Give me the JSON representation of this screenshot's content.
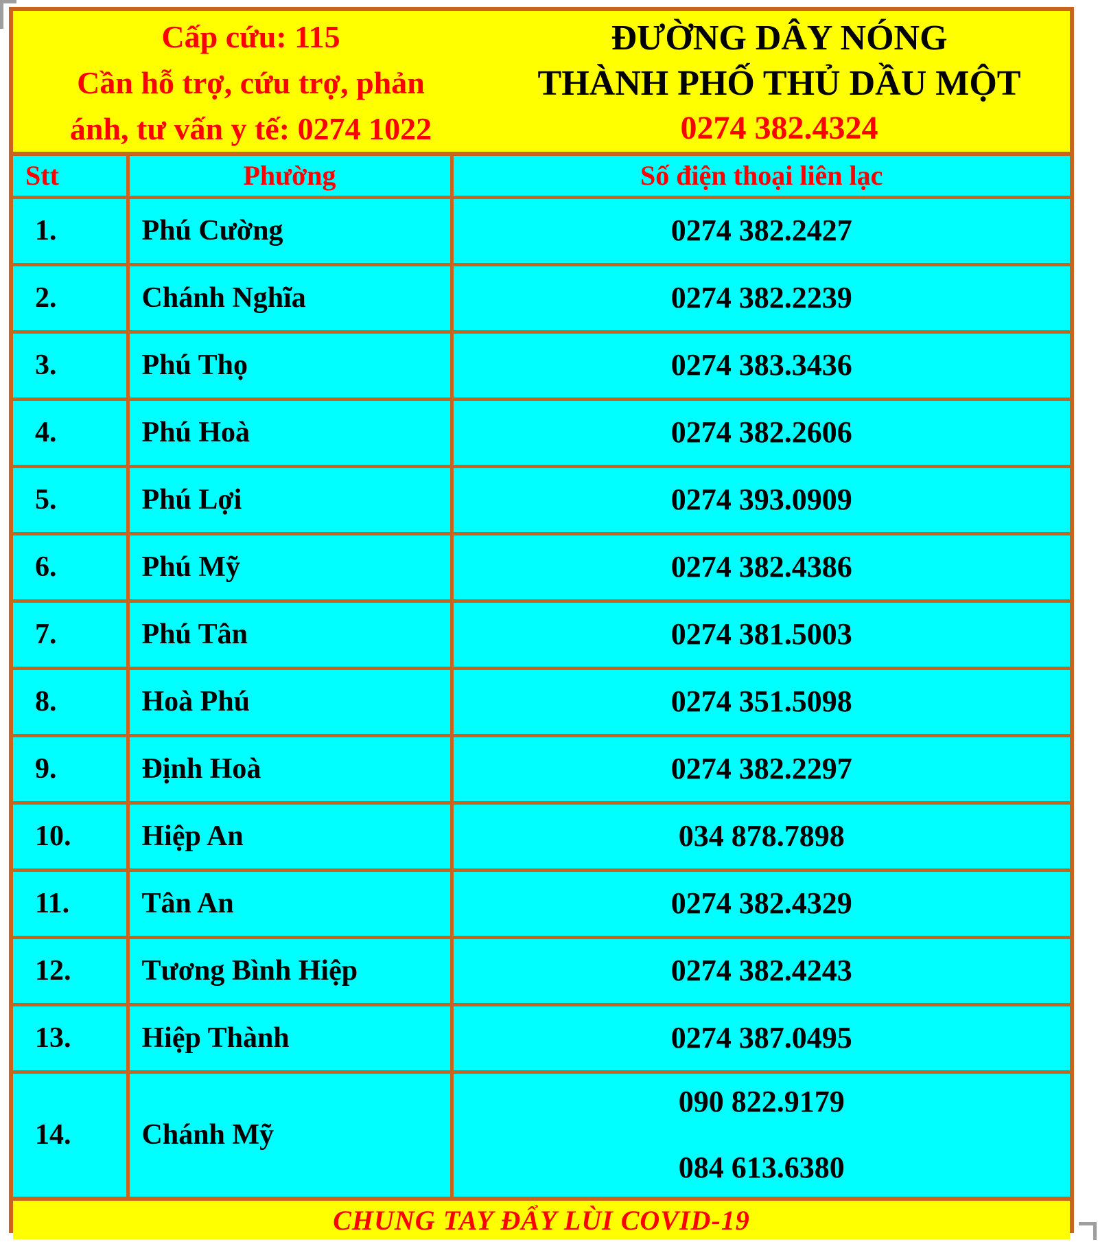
{
  "header": {
    "left": {
      "lines": [
        "Cấp cứu: 115",
        "Cần hỗ trợ, cứu trợ, phản",
        "ánh, tư vấn y tế: 0274 1022"
      ]
    },
    "right": {
      "lines": [
        "ĐƯỜNG DÂY NÓNG",
        "THÀNH PHỐ THỦ DẦU MỘT"
      ],
      "hotline": "0274 382.4324"
    }
  },
  "table": {
    "columns": [
      "Stt",
      "Phường",
      "Số điện thoại liên lạc"
    ],
    "rows": [
      {
        "stt": "1.",
        "ward": "Phú Cường",
        "phones": [
          "0274 382.2427"
        ]
      },
      {
        "stt": "2.",
        "ward": "Chánh Nghĩa",
        "phones": [
          "0274 382.2239"
        ]
      },
      {
        "stt": "3.",
        "ward": "Phú Thọ",
        "phones": [
          "0274 383.3436"
        ]
      },
      {
        "stt": "4.",
        "ward": "Phú Hoà",
        "phones": [
          "0274 382.2606"
        ]
      },
      {
        "stt": "5.",
        "ward": "Phú Lợi",
        "phones": [
          "0274 393.0909"
        ]
      },
      {
        "stt": "6.",
        "ward": "Phú Mỹ",
        "phones": [
          "0274 382.4386"
        ]
      },
      {
        "stt": "7.",
        "ward": "Phú Tân",
        "phones": [
          "0274 381.5003"
        ]
      },
      {
        "stt": "8.",
        "ward": "Hoà Phú",
        "phones": [
          "0274 351.5098"
        ]
      },
      {
        "stt": "9.",
        "ward": "Định Hoà",
        "phones": [
          "0274 382.2297"
        ]
      },
      {
        "stt": "10.",
        "ward": "Hiệp An",
        "phones": [
          "034 878.7898"
        ]
      },
      {
        "stt": "11.",
        "ward": "Tân An",
        "phones": [
          "0274 382.4329"
        ]
      },
      {
        "stt": "12.",
        "ward": "Tương Bình Hiệp",
        "phones": [
          "0274 382.4243"
        ]
      },
      {
        "stt": "13.",
        "ward": "Hiệp Thành",
        "phones": [
          "0274 387.0495"
        ]
      },
      {
        "stt": "14.",
        "ward": "Chánh Mỹ",
        "phones": [
          "090 822.9179",
          "084 613.6380"
        ]
      }
    ]
  },
  "footer": {
    "slogan": "CHUNG TAY ĐẨY LÙI COVID-19"
  },
  "colors": {
    "border_orange": "#c8641e",
    "band_yellow": "#ffff00",
    "cell_cyan": "#00ffff",
    "red_text": "#ff0000",
    "black_text": "#000000"
  }
}
